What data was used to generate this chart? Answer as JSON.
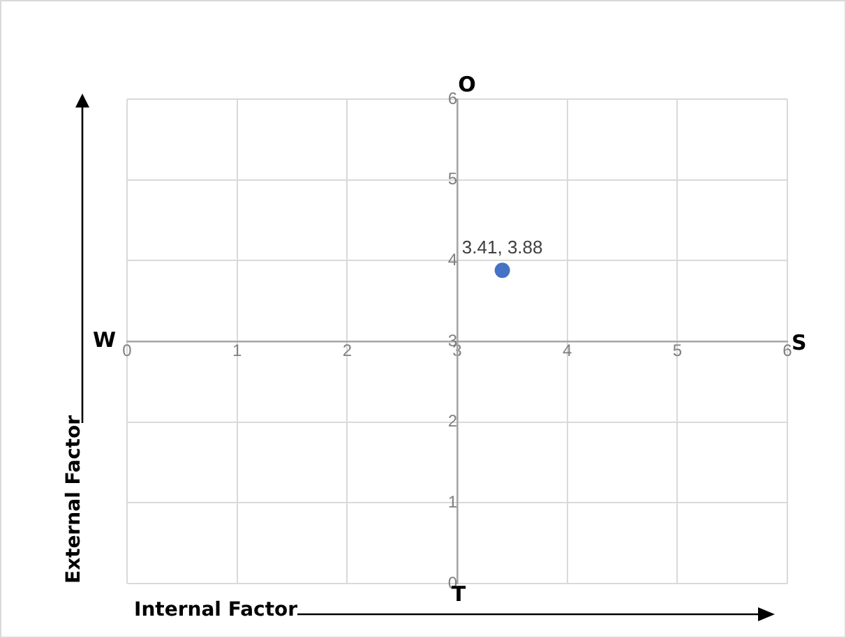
{
  "chart_data": {
    "type": "scatter",
    "xlabel": "Internal Factor",
    "ylabel": "External Factor",
    "x": [
      3.41
    ],
    "values": [
      3.88
    ],
    "value_labels": [
      "3.41, 3.88"
    ],
    "color": "#4472c4",
    "marker": "circle",
    "xlim": [
      0,
      6
    ],
    "ylim": [
      0,
      6
    ],
    "xticks": [
      0,
      1,
      2,
      3,
      4,
      5,
      6
    ],
    "yticks": [
      0,
      1,
      2,
      3,
      4,
      5,
      6
    ],
    "grid": true,
    "legend": false,
    "annotations": [
      "O",
      "S",
      "T",
      "W"
    ]
  }
}
